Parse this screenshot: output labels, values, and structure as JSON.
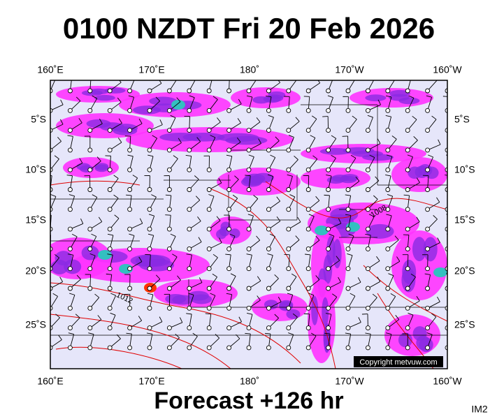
{
  "header": {
    "title": "0100 NZDT Fri 20 Feb 2026"
  },
  "map": {
    "lon_labels": [
      "160˚E",
      "170˚E",
      "180˚",
      "170˚W",
      "160˚W"
    ],
    "lat_labels": [
      "5˚S",
      "10˚S",
      "15˚S",
      "20˚S",
      "25˚S"
    ],
    "isobar_labels": [
      "1008",
      "1012"
    ],
    "copyright": "Copyright metvuw.com"
  },
  "footer": {
    "forecast": "Forecast +126 hr",
    "image_id": "IM2"
  }
}
